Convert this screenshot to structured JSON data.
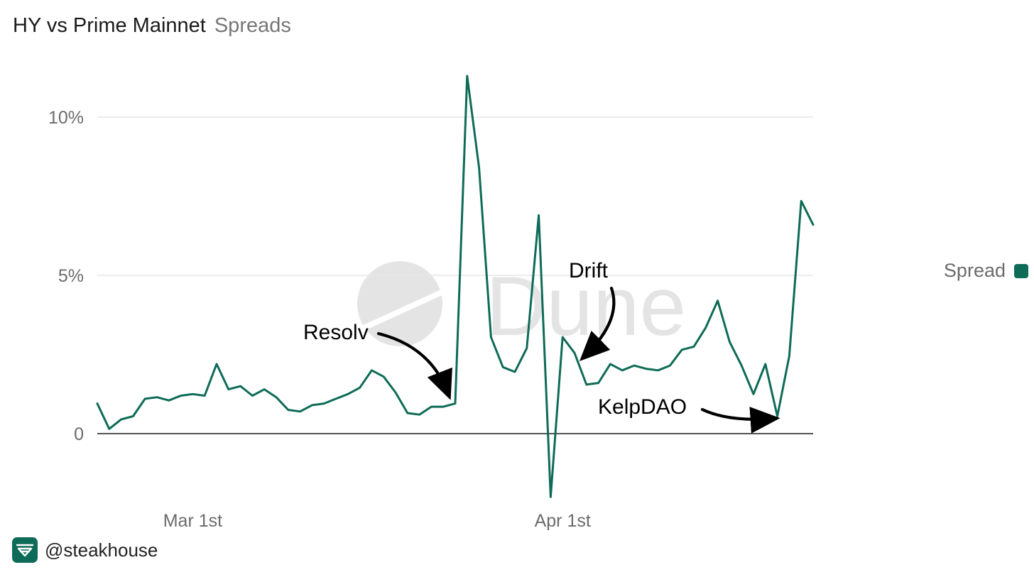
{
  "header": {
    "title": "HY vs Prime Mainnet",
    "subtitle": "Spreads"
  },
  "legend": {
    "label": "Spread"
  },
  "watermark": "Dune",
  "footer": {
    "handle": "@steakhouse",
    "logo_icon": "steakhouse-logo-icon"
  },
  "colors": {
    "series": "#0e6b57",
    "grid": "#e6e6e6",
    "axis": "#1a1a1a",
    "tick": "#6b6b6b",
    "watermark": "#e4e4e4"
  },
  "chart_data": {
    "type": "line",
    "title": "HY vs Prime Mainnet",
    "subtitle": "Spreads",
    "xlabel": "",
    "ylabel": "",
    "x_ticks": [
      "Mar 1st",
      "Apr 1st"
    ],
    "y_ticks": [
      "0",
      "5%",
      "10%"
    ],
    "ylim": [
      -2.2,
      11.2
    ],
    "x": [
      "2026-02-21",
      "2026-02-22",
      "2026-02-23",
      "2026-02-24",
      "2026-02-25",
      "2026-02-26",
      "2026-02-27",
      "2026-02-28",
      "2026-03-01",
      "2026-03-02",
      "2026-03-03",
      "2026-03-04",
      "2026-03-05",
      "2026-03-06",
      "2026-03-07",
      "2026-03-08",
      "2026-03-09",
      "2026-03-10",
      "2026-03-11",
      "2026-03-12",
      "2026-03-13",
      "2026-03-14",
      "2026-03-15",
      "2026-03-16",
      "2026-03-17",
      "2026-03-18",
      "2026-03-19",
      "2026-03-20",
      "2026-03-21",
      "2026-03-22",
      "2026-03-23",
      "2026-03-24",
      "2026-03-25",
      "2026-03-26",
      "2026-03-27",
      "2026-03-28",
      "2026-03-29",
      "2026-03-30",
      "2026-03-31",
      "2026-04-01",
      "2026-04-02",
      "2026-04-03",
      "2026-04-04",
      "2026-04-05",
      "2026-04-06",
      "2026-04-07",
      "2026-04-08",
      "2026-04-09",
      "2026-04-10",
      "2026-04-11",
      "2026-04-12",
      "2026-04-13",
      "2026-04-14",
      "2026-04-15",
      "2026-04-16",
      "2026-04-17",
      "2026-04-18",
      "2026-04-19",
      "2026-04-20",
      "2026-04-21",
      "2026-04-22"
    ],
    "series": [
      {
        "name": "Spread",
        "values": [
          0.95,
          0.15,
          0.45,
          0.55,
          1.1,
          1.15,
          1.05,
          1.2,
          1.25,
          1.2,
          2.2,
          1.4,
          1.5,
          1.2,
          1.4,
          1.15,
          0.75,
          0.7,
          0.9,
          0.95,
          1.1,
          1.25,
          1.45,
          2.0,
          1.8,
          1.3,
          0.65,
          0.6,
          0.85,
          0.85,
          0.95,
          11.3,
          8.4,
          3.05,
          2.1,
          1.95,
          2.7,
          6.9,
          -2.0,
          3.05,
          2.55,
          1.55,
          1.6,
          2.2,
          2.0,
          2.15,
          2.05,
          2.0,
          2.15,
          2.65,
          2.75,
          3.35,
          4.2,
          2.9,
          2.15,
          1.25,
          2.2,
          0.55,
          2.45,
          7.35,
          6.6
        ]
      }
    ],
    "annotations": [
      {
        "text": "Resolv",
        "x": "2026-03-22",
        "y": 0.95
      },
      {
        "text": "Drift",
        "x": "2026-04-03",
        "y": 2.4
      },
      {
        "text": "KelpDAO",
        "x": "2026-04-19",
        "y": 0.55
      }
    ]
  }
}
